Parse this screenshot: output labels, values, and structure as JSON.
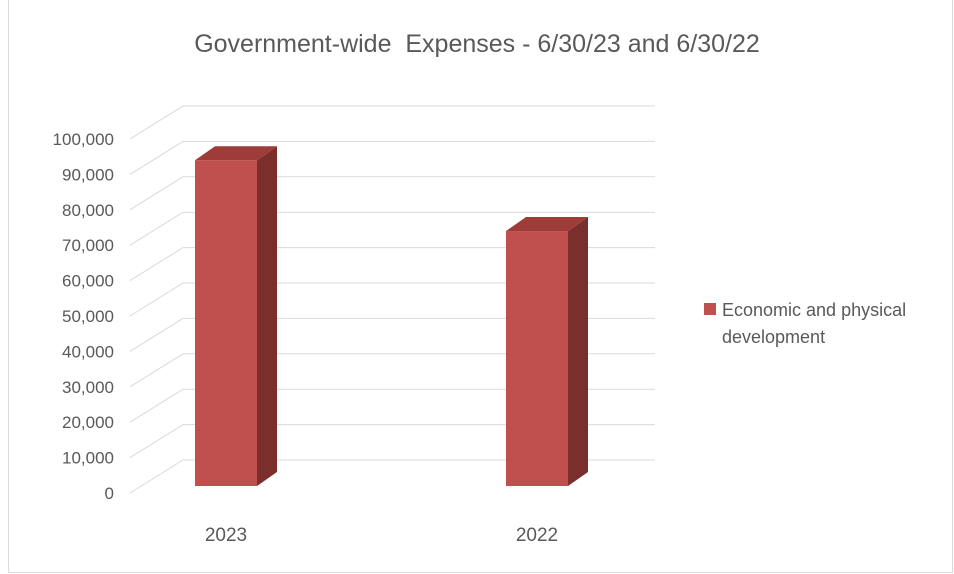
{
  "chart_data": {
    "type": "bar",
    "title": "Government-wide  Expenses - 6/30/23 and 6/30/22",
    "categories": [
      "2023",
      "2022"
    ],
    "series": [
      {
        "name": "Economic and physical development",
        "values": [
          94000,
          74000
        ],
        "color": "#c0504d"
      }
    ],
    "ylim": [
      0,
      100000
    ],
    "yticks": [
      "0",
      "10,000",
      "20,000",
      "30,000",
      "40,000",
      "50,000",
      "60,000",
      "70,000",
      "80,000",
      "90,000",
      "100,000"
    ],
    "grid": true,
    "legend_position": "right",
    "style": "3d-column"
  }
}
